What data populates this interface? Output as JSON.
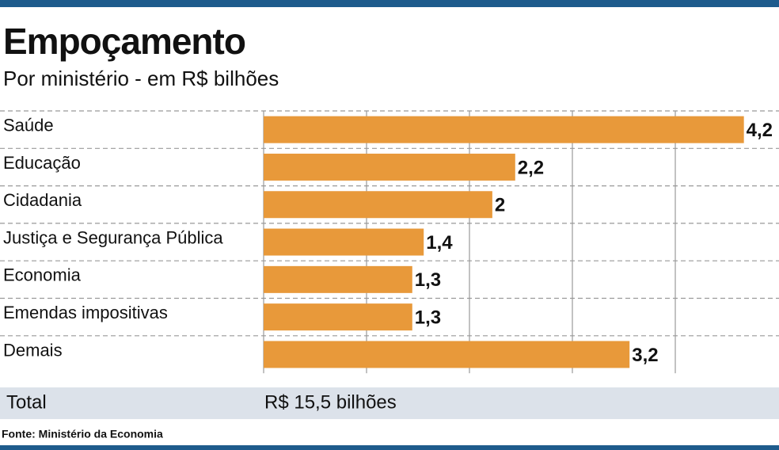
{
  "chart_data": {
    "type": "bar",
    "orientation": "horizontal",
    "title": "Empoçamento",
    "subtitle": "Por ministério - em R$ bilhões",
    "categories": [
      "Saúde",
      "Educação",
      "Cidadania",
      "Justiça e Segurança Pública",
      "Economia",
      "Emendas impositivas",
      "Demais"
    ],
    "values": [
      4.2,
      2.2,
      2,
      1.4,
      1.3,
      1.3,
      3.2
    ],
    "value_labels": [
      "4,2",
      "2,2",
      "2",
      "1,4",
      "1,3",
      "1,3",
      "3,2"
    ],
    "color": "#e8993a",
    "xlim": [
      0,
      4.5
    ],
    "xticks": [
      0,
      0.9,
      1.8,
      2.7,
      3.6
    ],
    "grid": true,
    "total": {
      "label": "Total",
      "value": "R$ 15,5 bilhões"
    },
    "source": "Fonte: Ministério da Economia"
  }
}
